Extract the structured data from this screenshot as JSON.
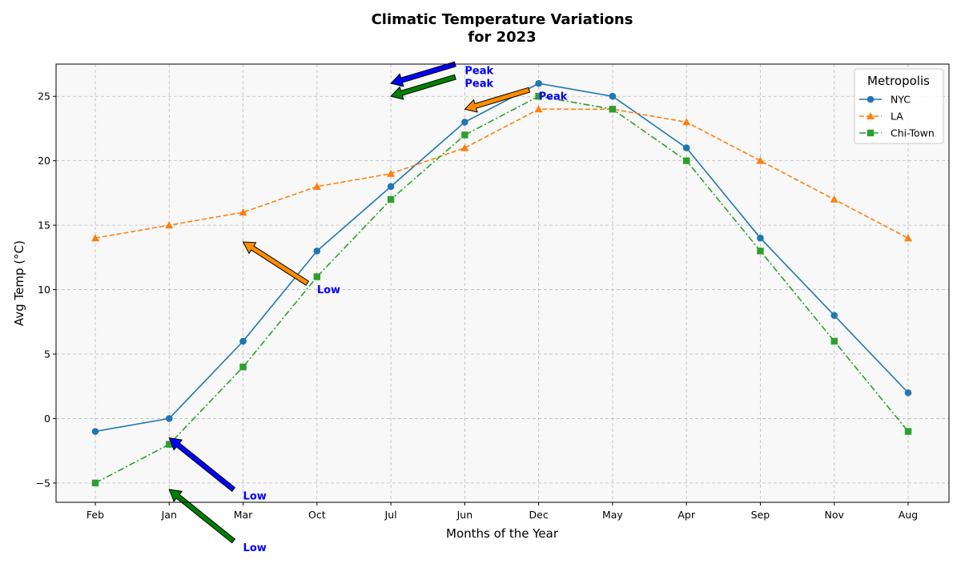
{
  "chart_data": {
    "type": "line",
    "title_line1": "Climatic Temperature Variations",
    "title_line2": "for 2023",
    "xlabel": "Months of the Year",
    "ylabel": "Avg Temp (°C)",
    "categories": [
      "Feb",
      "Jan",
      "Mar",
      "Oct",
      "Jul",
      "Jun",
      "Dec",
      "May",
      "Apr",
      "Sep",
      "Nov",
      "Aug"
    ],
    "ylim": [
      -6.5,
      27.5
    ],
    "yticks": [
      -5,
      0,
      5,
      10,
      15,
      20,
      25
    ],
    "ytick_labels": [
      "−5",
      "0",
      "5",
      "10",
      "15",
      "20",
      "25"
    ],
    "grid": true,
    "legend": {
      "title": "Metropolis",
      "placement": "top-right"
    },
    "series": [
      {
        "name": "NYC",
        "color": "#1f77b4",
        "marker": "circle",
        "linestyle": "solid",
        "values": [
          -1,
          0,
          6,
          13,
          18,
          23,
          26,
          25,
          21,
          14,
          8,
          2
        ]
      },
      {
        "name": "LA",
        "color": "#ff7f0e",
        "marker": "triangle",
        "linestyle": "dashed",
        "values": [
          14,
          15,
          16,
          18,
          19,
          21,
          24,
          24,
          23,
          20,
          17,
          14
        ]
      },
      {
        "name": "Chi-Town",
        "color": "#2ca02c",
        "marker": "square",
        "linestyle": "dashdot",
        "values": [
          -5,
          -2,
          4,
          11,
          17,
          22,
          25,
          24,
          20,
          13,
          6,
          -1
        ]
      }
    ],
    "annotations": [
      {
        "text": "Peak",
        "color": "#0000ff",
        "point": [
          "Jul",
          26
        ],
        "text_at": [
          "Jun",
          27
        ]
      },
      {
        "text": "Peak",
        "color": "#ff8c00",
        "point": [
          "Jun",
          24
        ],
        "text_at": [
          "Dec",
          25
        ]
      },
      {
        "text": "Peak",
        "color": "#008000",
        "point": [
          "Jul",
          25
        ],
        "text_at": [
          "Jun",
          26
        ]
      },
      {
        "text": "Low",
        "color": "#0000ff",
        "point": [
          "Jan",
          -1.5
        ],
        "text_at": [
          "Mar",
          -6
        ]
      },
      {
        "text": "Low",
        "color": "#ff8c00",
        "point": [
          "Mar",
          13.7
        ],
        "text_at": [
          "Oct",
          10
        ]
      },
      {
        "text": "Low",
        "color": "#008000",
        "point": [
          "Jan",
          -5.5
        ],
        "text_at": [
          "Mar",
          -10
        ]
      }
    ]
  }
}
